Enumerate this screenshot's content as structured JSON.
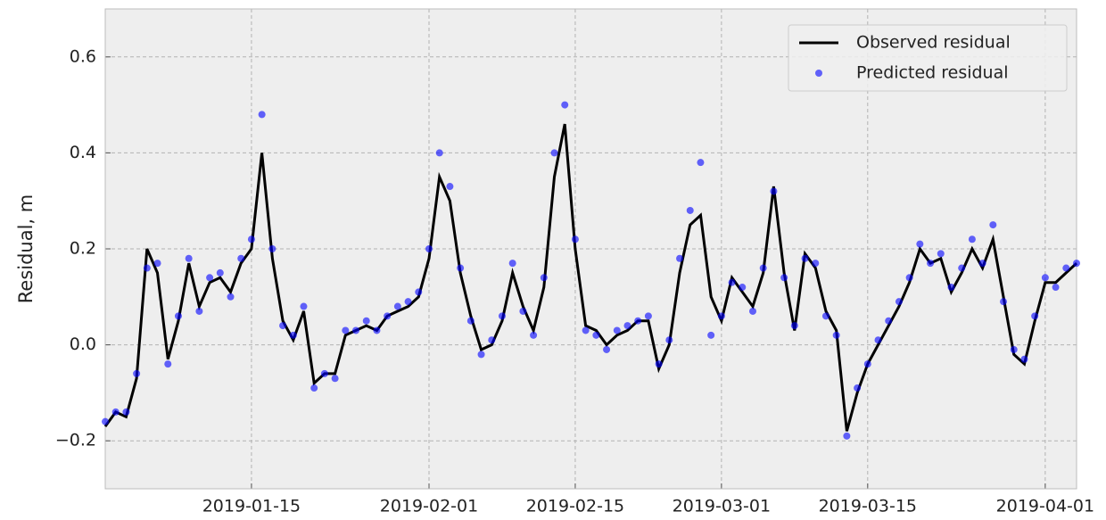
{
  "chart_data": {
    "type": "line",
    "ylabel": "Residual, m",
    "x": [
      "2019-01-01",
      "2019-01-02",
      "2019-01-03",
      "2019-01-04",
      "2019-01-05",
      "2019-01-06",
      "2019-01-07",
      "2019-01-08",
      "2019-01-09",
      "2019-01-10",
      "2019-01-11",
      "2019-01-12",
      "2019-01-13",
      "2019-01-14",
      "2019-01-15",
      "2019-01-16",
      "2019-01-17",
      "2019-01-18",
      "2019-01-19",
      "2019-01-20",
      "2019-01-21",
      "2019-01-22",
      "2019-01-23",
      "2019-01-24",
      "2019-01-25",
      "2019-01-26",
      "2019-01-27",
      "2019-01-28",
      "2019-01-29",
      "2019-01-30",
      "2019-01-31",
      "2019-02-01",
      "2019-02-02",
      "2019-02-03",
      "2019-02-04",
      "2019-02-05",
      "2019-02-06",
      "2019-02-07",
      "2019-02-08",
      "2019-02-09",
      "2019-02-10",
      "2019-02-11",
      "2019-02-12",
      "2019-02-13",
      "2019-02-14",
      "2019-02-15",
      "2019-02-16",
      "2019-02-17",
      "2019-02-18",
      "2019-02-19",
      "2019-02-20",
      "2019-02-21",
      "2019-02-22",
      "2019-02-23",
      "2019-02-24",
      "2019-02-25",
      "2019-02-26",
      "2019-02-27",
      "2019-02-28",
      "2019-03-01",
      "2019-03-02",
      "2019-03-03",
      "2019-03-04",
      "2019-03-05",
      "2019-03-06",
      "2019-03-07",
      "2019-03-08",
      "2019-03-09",
      "2019-03-10",
      "2019-03-11",
      "2019-03-12",
      "2019-03-13",
      "2019-03-14",
      "2019-03-15",
      "2019-03-16",
      "2019-03-17",
      "2019-03-18",
      "2019-03-19",
      "2019-03-20",
      "2019-03-21",
      "2019-03-22",
      "2019-03-23",
      "2019-03-24",
      "2019-03-25",
      "2019-03-26",
      "2019-03-27",
      "2019-03-28",
      "2019-03-29",
      "2019-03-30",
      "2019-03-31",
      "2019-04-01",
      "2019-04-02",
      "2019-04-03",
      "2019-04-04"
    ],
    "series": [
      {
        "name": "Observed residual",
        "kind": "line",
        "color": "#000000",
        "values": [
          -0.17,
          -0.14,
          -0.15,
          -0.07,
          0.2,
          0.15,
          -0.03,
          0.05,
          0.17,
          0.08,
          0.13,
          0.14,
          0.11,
          0.17,
          0.2,
          0.4,
          0.18,
          0.05,
          0.01,
          0.07,
          -0.08,
          -0.06,
          -0.06,
          0.02,
          0.03,
          0.04,
          0.03,
          0.06,
          0.07,
          0.08,
          0.1,
          0.18,
          0.35,
          0.3,
          0.15,
          0.06,
          -0.01,
          0,
          0.05,
          0.15,
          0.08,
          0.03,
          0.12,
          0.35,
          0.46,
          0.2,
          0.04,
          0.03,
          0,
          0.02,
          0.03,
          0.05,
          0.05,
          -0.05,
          0,
          0.15,
          0.25,
          0.27,
          0.1,
          0.05,
          0.14,
          0.11,
          0.08,
          0.15,
          0.33,
          0.15,
          0.03,
          0.19,
          0.16,
          0.07,
          0.03,
          -0.18,
          -0.1,
          -0.04,
          0,
          0.04,
          0.08,
          0.13,
          0.2,
          0.17,
          0.18,
          0.11,
          0.15,
          0.2,
          0.16,
          0.22,
          0.1,
          -0.02,
          -0.04,
          0.05,
          0.13,
          0.13,
          0.15,
          0.17
        ]
      },
      {
        "name": "Predicted residual",
        "kind": "scatter",
        "color": "#0000ff",
        "values": [
          -0.16,
          -0.14,
          -0.14,
          -0.06,
          0.16,
          0.17,
          -0.04,
          0.06,
          0.18,
          0.07,
          0.14,
          0.15,
          0.1,
          0.18,
          0.22,
          0.48,
          0.2,
          0.04,
          0.02,
          0.08,
          -0.09,
          -0.06,
          -0.07,
          0.03,
          0.03,
          0.05,
          0.03,
          0.06,
          0.08,
          0.09,
          0.11,
          0.2,
          0.4,
          0.33,
          0.16,
          0.05,
          -0.02,
          0.01,
          0.06,
          0.17,
          0.07,
          0.02,
          0.14,
          0.4,
          0.5,
          0.22,
          0.03,
          0.02,
          -0.01,
          0.03,
          0.04,
          0.05,
          0.06,
          -0.04,
          0.01,
          0.18,
          0.28,
          0.38,
          0.02,
          0.06,
          0.13,
          0.12,
          0.07,
          0.16,
          0.32,
          0.14,
          0.04,
          0.18,
          0.17,
          0.06,
          0.02,
          -0.19,
          -0.09,
          -0.04,
          0.01,
          0.05,
          0.09,
          0.14,
          0.21,
          0.17,
          0.19,
          0.12,
          0.16,
          0.22,
          0.17,
          0.25,
          0.09,
          -0.01,
          -0.03,
          0.06,
          0.14,
          0.12,
          0.16,
          0.17
        ]
      }
    ],
    "xlim": [
      "2019-01-01",
      "2019-04-04"
    ],
    "xticks": [
      "2019-01-15",
      "2019-02-01",
      "2019-02-15",
      "2019-03-01",
      "2019-03-15",
      "2019-04-01"
    ],
    "ylim": [
      -0.3,
      0.7
    ],
    "yticks": [
      {
        "value": -0.2,
        "label": "−0.2"
      },
      {
        "value": 0,
        "label": "0.0"
      },
      0.2,
      0.4,
      0.6
    ],
    "grid": true,
    "legend": "upper right"
  }
}
